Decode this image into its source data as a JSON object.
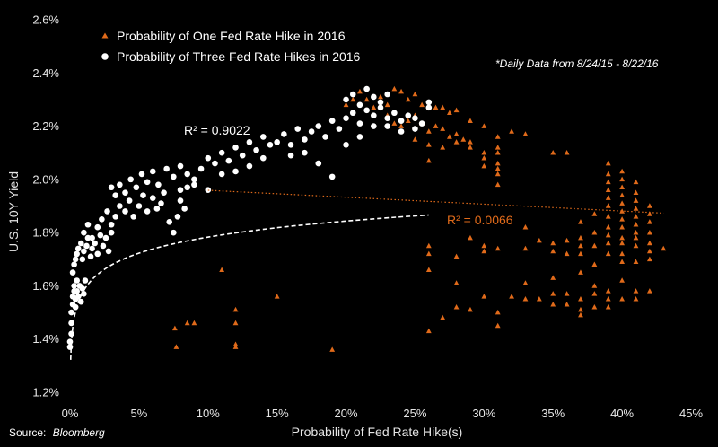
{
  "chart_data": {
    "type": "scatter",
    "title": "",
    "xlabel": "Probability of Fed Rate Hike(s)",
    "ylabel": "U.S. 10Y Yield",
    "xlim": [
      0,
      45
    ],
    "ylim": [
      1.2,
      2.6
    ],
    "x_ticks": [
      "0%",
      "5%",
      "10%",
      "15%",
      "20%",
      "25%",
      "30%",
      "35%",
      "40%",
      "45%"
    ],
    "y_ticks": [
      "1.2%",
      "1.4%",
      "1.6%",
      "1.8%",
      "2.0%",
      "2.2%",
      "2.4%",
      "2.6%"
    ],
    "x_tick_values": [
      0,
      5,
      10,
      15,
      20,
      25,
      30,
      35,
      40,
      45
    ],
    "y_tick_values": [
      1.2,
      1.4,
      1.6,
      1.8,
      2.0,
      2.2,
      2.4,
      2.6
    ],
    "note": "*Daily Data from 8/24/15 - 8/22/16",
    "source_label": "Source:",
    "source_name": "Bloomberg",
    "legend_position": "top-left",
    "colors": {
      "one_hike": "#e06a1a",
      "three_hikes": "#ffffff",
      "background": "#000000"
    },
    "series": [
      {
        "name": "Probability of One Fed Rate Hike in 2016",
        "marker": "triangle",
        "color": "#e06a1a",
        "points": [
          [
            7.6,
            1.44
          ],
          [
            7.7,
            1.37
          ],
          [
            8.5,
            1.46
          ],
          [
            9.0,
            1.46
          ],
          [
            11.0,
            1.66
          ],
          [
            12.0,
            1.51
          ],
          [
            12.0,
            1.46
          ],
          [
            12.0,
            1.38
          ],
          [
            12.0,
            1.37
          ],
          [
            15.0,
            1.56
          ],
          [
            19.0,
            1.36
          ],
          [
            20.0,
            2.28
          ],
          [
            20.5,
            2.3
          ],
          [
            21.0,
            2.33
          ],
          [
            21.5,
            2.3
          ],
          [
            22.0,
            2.27
          ],
          [
            22.5,
            2.31
          ],
          [
            23.0,
            2.28
          ],
          [
            23.5,
            2.34
          ],
          [
            24.0,
            2.33
          ],
          [
            24.5,
            2.3
          ],
          [
            25.0,
            2.32
          ],
          [
            25.5,
            2.28
          ],
          [
            26.0,
            2.27
          ],
          [
            26.5,
            2.27
          ],
          [
            27.0,
            2.27
          ],
          [
            27.5,
            2.25
          ],
          [
            28.0,
            2.26
          ],
          [
            29.0,
            2.22
          ],
          [
            30.0,
            2.2
          ],
          [
            31.0,
            2.16
          ],
          [
            32.0,
            2.18
          ],
          [
            33.0,
            2.17
          ],
          [
            23.0,
            2.24
          ],
          [
            23.5,
            2.21
          ],
          [
            24.0,
            2.2
          ],
          [
            24.5,
            2.22
          ],
          [
            25.0,
            2.24
          ],
          [
            25.5,
            2.21
          ],
          [
            26.0,
            2.18
          ],
          [
            26.5,
            2.2
          ],
          [
            27.0,
            2.19
          ],
          [
            27.5,
            2.16
          ],
          [
            28.0,
            2.17
          ],
          [
            28.5,
            2.15
          ],
          [
            29.0,
            2.14
          ],
          [
            25.0,
            2.15
          ],
          [
            26.0,
            2.13
          ],
          [
            27.0,
            2.12
          ],
          [
            28.0,
            2.14
          ],
          [
            29.0,
            2.12
          ],
          [
            30.0,
            2.1
          ],
          [
            30.0,
            2.08
          ],
          [
            30.0,
            2.05
          ],
          [
            31.0,
            2.12
          ],
          [
            31.0,
            2.1
          ],
          [
            31.0,
            2.06
          ],
          [
            31.0,
            2.04
          ],
          [
            31.0,
            2.02
          ],
          [
            31.0,
            1.98
          ],
          [
            26.0,
            2.07
          ],
          [
            26.0,
            1.75
          ],
          [
            26.0,
            1.72
          ],
          [
            26.0,
            1.66
          ],
          [
            26.0,
            1.43
          ],
          [
            27.0,
            1.48
          ],
          [
            28.0,
            1.71
          ],
          [
            28.0,
            1.61
          ],
          [
            28.0,
            1.52
          ],
          [
            29.0,
            1.78
          ],
          [
            29.0,
            1.51
          ],
          [
            30.0,
            1.75
          ],
          [
            30.0,
            1.73
          ],
          [
            30.0,
            1.56
          ],
          [
            31.0,
            1.74
          ],
          [
            31.0,
            1.5
          ],
          [
            31.0,
            1.45
          ],
          [
            32.0,
            1.56
          ],
          [
            33.0,
            1.82
          ],
          [
            33.0,
            1.74
          ],
          [
            33.0,
            1.61
          ],
          [
            33.0,
            1.55
          ],
          [
            34.0,
            1.77
          ],
          [
            34.0,
            1.55
          ],
          [
            35.0,
            2.1
          ],
          [
            35.0,
            1.76
          ],
          [
            35.0,
            1.73
          ],
          [
            35.0,
            1.63
          ],
          [
            35.0,
            1.57
          ],
          [
            35.0,
            1.53
          ],
          [
            36.0,
            2.1
          ],
          [
            36.0,
            1.77
          ],
          [
            36.0,
            1.72
          ],
          [
            36.0,
            1.57
          ],
          [
            36.0,
            1.53
          ],
          [
            37.0,
            1.84
          ],
          [
            37.0,
            1.78
          ],
          [
            37.0,
            1.75
          ],
          [
            37.0,
            1.72
          ],
          [
            37.0,
            1.65
          ],
          [
            37.0,
            1.55
          ],
          [
            37.0,
            1.51
          ],
          [
            37.0,
            1.49
          ],
          [
            38.0,
            1.87
          ],
          [
            38.0,
            1.8
          ],
          [
            38.0,
            1.75
          ],
          [
            38.0,
            1.68
          ],
          [
            38.0,
            1.6
          ],
          [
            38.0,
            1.57
          ],
          [
            38.0,
            1.52
          ],
          [
            39.0,
            2.06
          ],
          [
            39.0,
            2.02
          ],
          [
            39.0,
            1.99
          ],
          [
            39.0,
            1.96
          ],
          [
            39.0,
            1.93
          ],
          [
            39.0,
            1.9
          ],
          [
            39.0,
            1.86
          ],
          [
            39.0,
            1.82
          ],
          [
            39.0,
            1.79
          ],
          [
            39.0,
            1.76
          ],
          [
            39.0,
            1.72
          ],
          [
            39.0,
            1.58
          ],
          [
            39.0,
            1.55
          ],
          [
            39.0,
            1.52
          ],
          [
            40.0,
            2.03
          ],
          [
            40.0,
            2.0
          ],
          [
            40.0,
            1.97
          ],
          [
            40.0,
            1.94
          ],
          [
            40.0,
            1.91
          ],
          [
            40.0,
            1.88
          ],
          [
            40.0,
            1.85
          ],
          [
            40.0,
            1.82
          ],
          [
            40.0,
            1.78
          ],
          [
            40.0,
            1.76
          ],
          [
            40.0,
            1.72
          ],
          [
            40.0,
            1.69
          ],
          [
            40.0,
            1.62
          ],
          [
            40.0,
            1.55
          ],
          [
            41.0,
            1.99
          ],
          [
            41.0,
            1.95
          ],
          [
            41.0,
            1.92
          ],
          [
            41.0,
            1.89
          ],
          [
            41.0,
            1.86
          ],
          [
            41.0,
            1.83
          ],
          [
            41.0,
            1.8
          ],
          [
            41.0,
            1.78
          ],
          [
            41.0,
            1.75
          ],
          [
            41.0,
            1.69
          ],
          [
            41.0,
            1.58
          ],
          [
            41.0,
            1.55
          ],
          [
            42.0,
            1.9
          ],
          [
            42.0,
            1.87
          ],
          [
            42.0,
            1.84
          ],
          [
            42.0,
            1.8
          ],
          [
            42.0,
            1.76
          ],
          [
            42.0,
            1.73
          ],
          [
            42.0,
            1.7
          ],
          [
            42.0,
            1.58
          ],
          [
            43.0,
            1.74
          ]
        ],
        "trendline": {
          "r2_label": "R² = 0.0066",
          "intercept": 1.985,
          "slope": -0.0026,
          "x_range": [
            10,
            43
          ],
          "style": "dotted"
        }
      },
      {
        "name": "Probability of Three Fed Rate Hikes in 2016",
        "marker": "circle",
        "color": "#ffffff",
        "points": [
          [
            0.0,
            1.37
          ],
          [
            0.0,
            1.39
          ],
          [
            0.1,
            1.42
          ],
          [
            0.1,
            1.46
          ],
          [
            0.1,
            1.5
          ],
          [
            0.2,
            1.53
          ],
          [
            0.2,
            1.56
          ],
          [
            0.3,
            1.58
          ],
          [
            0.3,
            1.6
          ],
          [
            0.4,
            1.55
          ],
          [
            0.4,
            1.52
          ],
          [
            0.5,
            1.58
          ],
          [
            0.5,
            1.62
          ],
          [
            0.6,
            1.56
          ],
          [
            0.7,
            1.6
          ],
          [
            0.8,
            1.54
          ],
          [
            0.9,
            1.59
          ],
          [
            1.0,
            1.57
          ],
          [
            1.1,
            1.62
          ],
          [
            0.2,
            1.65
          ],
          [
            0.3,
            1.68
          ],
          [
            0.4,
            1.7
          ],
          [
            0.5,
            1.72
          ],
          [
            0.6,
            1.74
          ],
          [
            0.8,
            1.76
          ],
          [
            0.9,
            1.7
          ],
          [
            1.0,
            1.73
          ],
          [
            1.2,
            1.75
          ],
          [
            1.3,
            1.78
          ],
          [
            1.5,
            1.71
          ],
          [
            1.6,
            1.74
          ],
          [
            1.8,
            1.76
          ],
          [
            2.0,
            1.72
          ],
          [
            2.2,
            1.79
          ],
          [
            2.4,
            1.75
          ],
          [
            2.6,
            1.78
          ],
          [
            2.8,
            1.73
          ],
          [
            3.0,
            1.8
          ],
          [
            1.0,
            1.8
          ],
          [
            1.3,
            1.83
          ],
          [
            1.6,
            1.78
          ],
          [
            2.0,
            1.82
          ],
          [
            2.3,
            1.85
          ],
          [
            2.7,
            1.88
          ],
          [
            3.0,
            1.83
          ],
          [
            3.3,
            1.86
          ],
          [
            3.6,
            1.9
          ],
          [
            4.0,
            1.88
          ],
          [
            4.3,
            1.92
          ],
          [
            4.6,
            1.86
          ],
          [
            5.0,
            1.9
          ],
          [
            5.3,
            1.94
          ],
          [
            5.6,
            1.88
          ],
          [
            6.0,
            1.93
          ],
          [
            6.3,
            1.89
          ],
          [
            6.6,
            1.91
          ],
          [
            3.0,
            1.97
          ],
          [
            3.3,
            1.94
          ],
          [
            3.6,
            1.98
          ],
          [
            4.0,
            1.95
          ],
          [
            4.4,
            2.0
          ],
          [
            4.8,
            1.97
          ],
          [
            5.2,
            2.02
          ],
          [
            5.6,
            1.99
          ],
          [
            6.0,
            2.03
          ],
          [
            6.4,
            1.98
          ],
          [
            6.8,
            1.95
          ],
          [
            7.2,
            1.84
          ],
          [
            7.5,
            1.8
          ],
          [
            7.8,
            1.86
          ],
          [
            8.0,
            1.92
          ],
          [
            8.3,
            1.89
          ],
          [
            7.0,
            2.04
          ],
          [
            7.5,
            2.01
          ],
          [
            8.0,
            2.05
          ],
          [
            8.5,
            2.02
          ],
          [
            9.0,
            2.0
          ],
          [
            9.5,
            2.04
          ],
          [
            10.0,
            2.08
          ],
          [
            10.5,
            2.06
          ],
          [
            11.0,
            2.1
          ],
          [
            11.5,
            2.07
          ],
          [
            12.0,
            2.12
          ],
          [
            12.5,
            2.09
          ],
          [
            13.0,
            2.14
          ],
          [
            13.5,
            2.11
          ],
          [
            14.0,
            2.16
          ],
          [
            14.5,
            2.13
          ],
          [
            8.0,
            1.96
          ],
          [
            8.5,
            1.97
          ],
          [
            9.0,
            1.98
          ],
          [
            10.0,
            1.96
          ],
          [
            11.0,
            2.02
          ],
          [
            12.0,
            2.03
          ],
          [
            13.0,
            2.05
          ],
          [
            14.0,
            2.08
          ],
          [
            15.0,
            2.14
          ],
          [
            15.5,
            2.17
          ],
          [
            16.0,
            2.13
          ],
          [
            16.5,
            2.19
          ],
          [
            17.0,
            2.15
          ],
          [
            17.5,
            2.18
          ],
          [
            18.0,
            2.2
          ],
          [
            18.5,
            2.16
          ],
          [
            19.0,
            2.22
          ],
          [
            19.5,
            2.19
          ],
          [
            20.0,
            2.23
          ],
          [
            20.5,
            2.25
          ],
          [
            21.0,
            2.21
          ],
          [
            21.5,
            2.26
          ],
          [
            22.0,
            2.24
          ],
          [
            22.5,
            2.27
          ],
          [
            23.0,
            2.23
          ],
          [
            23.5,
            2.25
          ],
          [
            24.0,
            2.22
          ],
          [
            24.5,
            2.24
          ],
          [
            25.0,
            2.23
          ],
          [
            25.5,
            2.21
          ],
          [
            26.0,
            2.27
          ],
          [
            26.0,
            2.29
          ],
          [
            20.0,
            2.3
          ],
          [
            20.5,
            2.32
          ],
          [
            21.0,
            2.28
          ],
          [
            21.5,
            2.34
          ],
          [
            22.0,
            2.31
          ],
          [
            22.5,
            2.29
          ],
          [
            23.0,
            2.32
          ],
          [
            19.0,
            2.01
          ],
          [
            17.0,
            2.1
          ],
          [
            18.0,
            2.06
          ],
          [
            16.0,
            2.09
          ],
          [
            20.0,
            2.13
          ],
          [
            21.0,
            2.16
          ],
          [
            22.0,
            2.2
          ],
          [
            23.0,
            2.2
          ],
          [
            24.0,
            2.18
          ],
          [
            25.0,
            2.19
          ]
        ],
        "trendline": {
          "r2_label": "R² = 0.9022",
          "model": "log",
          "a": 1.5825,
          "b": 0.2005,
          "x_range": [
            0.05,
            26
          ],
          "style": "dashed"
        }
      }
    ]
  }
}
